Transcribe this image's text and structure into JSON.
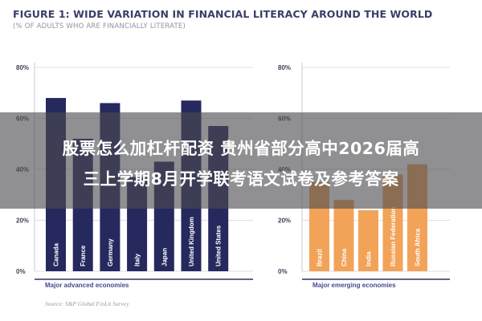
{
  "figure": {
    "title": "FIGURE 1: WIDE VARIATION IN FINANCIAL LITERACY AROUND THE WORLD",
    "subtitle": "(% OF ADULTS WHO ARE FINANCIALLY LITERATE)",
    "source": "Source: S&P Global FinLit Survey"
  },
  "overlay": {
    "line1": "股票怎么加杠杆配资 贵州省部分高中2026届高",
    "line2": "三上学期8月开学联考语文试卷及参考答案"
  },
  "colors": {
    "advanced": "#25295e",
    "emerging": "#f2a358",
    "group_label": "#454b8f",
    "axis_text": "#3f4359",
    "grid": "#dddde6"
  },
  "chart_data": [
    {
      "type": "bar",
      "group_label": "Major advanced economies",
      "categories": [
        "Canada",
        "France",
        "Germany",
        "Italy",
        "Japan",
        "United Kingdom",
        "United States"
      ],
      "values": [
        68,
        52,
        66,
        37,
        43,
        67,
        57
      ],
      "ylim": [
        0,
        80
      ],
      "yticks": [
        "0%",
        "20%",
        "40%",
        "60%",
        "80%"
      ],
      "grid": true
    },
    {
      "type": "bar",
      "group_label": "Major emerging economies",
      "categories": [
        "Brazil",
        "China",
        "India",
        "Russian Federation",
        "South Africa"
      ],
      "values": [
        35,
        28,
        24,
        38,
        42
      ],
      "ylim": [
        0,
        80
      ],
      "yticks": [
        "0%",
        "20%",
        "40%",
        "60%",
        "80%"
      ],
      "grid": true
    }
  ]
}
